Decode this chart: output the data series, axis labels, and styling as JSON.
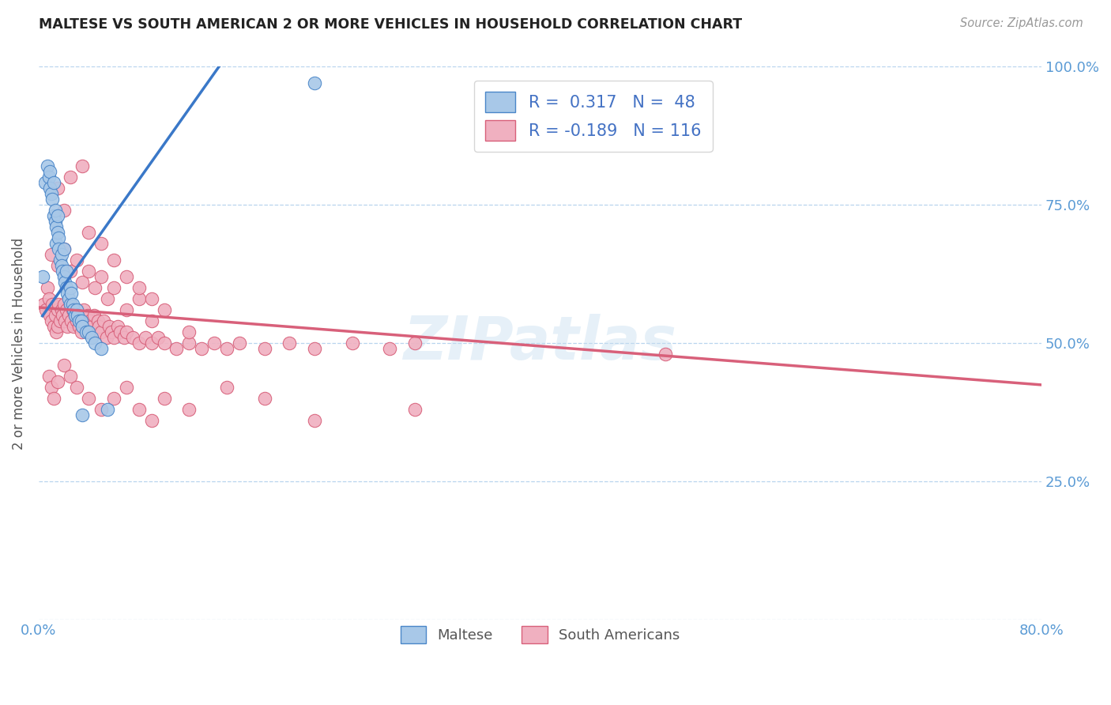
{
  "title": "MALTESE VS SOUTH AMERICAN 2 OR MORE VEHICLES IN HOUSEHOLD CORRELATION CHART",
  "source": "Source: ZipAtlas.com",
  "ylabel": "2 or more Vehicles in Household",
  "xlim": [
    0.0,
    0.8
  ],
  "ylim": [
    0.0,
    1.0
  ],
  "xtick_positions": [
    0.0,
    0.1,
    0.2,
    0.3,
    0.4,
    0.5,
    0.6,
    0.7,
    0.8
  ],
  "xticklabels": [
    "0.0%",
    "",
    "",
    "",
    "",
    "",
    "",
    "",
    "80.0%"
  ],
  "ytick_positions": [
    0.0,
    0.25,
    0.5,
    0.75,
    1.0
  ],
  "ytick_labels": [
    "",
    "25.0%",
    "50.0%",
    "75.0%",
    "100.0%"
  ],
  "watermark": "ZIPatlas",
  "blue_face": "#a8c8e8",
  "blue_edge": "#4a86c8",
  "pink_face": "#f0b0c0",
  "pink_edge": "#d8607a",
  "blue_line": "#3a78c8",
  "pink_line": "#d8607a",
  "blue_slope": 3.2,
  "blue_intercept": 0.54,
  "pink_slope": -0.175,
  "pink_intercept": 0.565,
  "maltese_x": [
    0.003,
    0.005,
    0.007,
    0.008,
    0.009,
    0.009,
    0.01,
    0.011,
    0.012,
    0.012,
    0.013,
    0.013,
    0.014,
    0.014,
    0.015,
    0.015,
    0.016,
    0.016,
    0.017,
    0.018,
    0.018,
    0.019,
    0.02,
    0.02,
    0.021,
    0.022,
    0.022,
    0.023,
    0.024,
    0.025,
    0.025,
    0.026,
    0.027,
    0.028,
    0.029,
    0.03,
    0.031,
    0.032,
    0.034,
    0.035,
    0.038,
    0.04,
    0.042,
    0.045,
    0.05,
    0.055,
    0.22,
    0.035
  ],
  "maltese_y": [
    0.62,
    0.79,
    0.82,
    0.8,
    0.78,
    0.81,
    0.77,
    0.76,
    0.73,
    0.79,
    0.72,
    0.74,
    0.71,
    0.68,
    0.7,
    0.73,
    0.69,
    0.67,
    0.65,
    0.66,
    0.64,
    0.63,
    0.62,
    0.67,
    0.61,
    0.6,
    0.63,
    0.59,
    0.58,
    0.57,
    0.6,
    0.59,
    0.57,
    0.56,
    0.55,
    0.56,
    0.55,
    0.54,
    0.54,
    0.53,
    0.52,
    0.52,
    0.51,
    0.5,
    0.49,
    0.38,
    0.97,
    0.37
  ],
  "sa_x": [
    0.004,
    0.006,
    0.007,
    0.008,
    0.009,
    0.01,
    0.011,
    0.012,
    0.013,
    0.014,
    0.015,
    0.015,
    0.016,
    0.017,
    0.018,
    0.019,
    0.02,
    0.021,
    0.022,
    0.023,
    0.024,
    0.025,
    0.026,
    0.027,
    0.028,
    0.029,
    0.03,
    0.031,
    0.032,
    0.033,
    0.034,
    0.035,
    0.036,
    0.038,
    0.039,
    0.04,
    0.041,
    0.042,
    0.044,
    0.045,
    0.047,
    0.048,
    0.05,
    0.052,
    0.054,
    0.056,
    0.058,
    0.06,
    0.063,
    0.065,
    0.068,
    0.07,
    0.075,
    0.08,
    0.085,
    0.09,
    0.095,
    0.1,
    0.11,
    0.12,
    0.13,
    0.14,
    0.15,
    0.16,
    0.18,
    0.2,
    0.22,
    0.25,
    0.28,
    0.3,
    0.01,
    0.015,
    0.02,
    0.025,
    0.03,
    0.035,
    0.04,
    0.045,
    0.05,
    0.055,
    0.06,
    0.07,
    0.08,
    0.09,
    0.1,
    0.12,
    0.015,
    0.02,
    0.025,
    0.035,
    0.04,
    0.05,
    0.06,
    0.07,
    0.08,
    0.09,
    0.008,
    0.01,
    0.012,
    0.015,
    0.02,
    0.025,
    0.03,
    0.04,
    0.05,
    0.06,
    0.07,
    0.08,
    0.09,
    0.1,
    0.12,
    0.15,
    0.18,
    0.22,
    0.3,
    0.5
  ],
  "sa_y": [
    0.57,
    0.56,
    0.6,
    0.58,
    0.55,
    0.54,
    0.57,
    0.53,
    0.55,
    0.52,
    0.56,
    0.53,
    0.57,
    0.54,
    0.56,
    0.55,
    0.57,
    0.54,
    0.56,
    0.53,
    0.55,
    0.57,
    0.54,
    0.56,
    0.53,
    0.55,
    0.54,
    0.56,
    0.53,
    0.55,
    0.52,
    0.54,
    0.56,
    0.53,
    0.55,
    0.52,
    0.54,
    0.53,
    0.55,
    0.52,
    0.54,
    0.53,
    0.52,
    0.54,
    0.51,
    0.53,
    0.52,
    0.51,
    0.53,
    0.52,
    0.51,
    0.52,
    0.51,
    0.5,
    0.51,
    0.5,
    0.51,
    0.5,
    0.49,
    0.5,
    0.49,
    0.5,
    0.49,
    0.5,
    0.49,
    0.5,
    0.49,
    0.5,
    0.49,
    0.5,
    0.66,
    0.64,
    0.67,
    0.63,
    0.65,
    0.61,
    0.63,
    0.6,
    0.62,
    0.58,
    0.6,
    0.56,
    0.58,
    0.54,
    0.56,
    0.52,
    0.78,
    0.74,
    0.8,
    0.82,
    0.7,
    0.68,
    0.65,
    0.62,
    0.6,
    0.58,
    0.44,
    0.42,
    0.4,
    0.43,
    0.46,
    0.44,
    0.42,
    0.4,
    0.38,
    0.4,
    0.42,
    0.38,
    0.36,
    0.4,
    0.38,
    0.42,
    0.4,
    0.36,
    0.38,
    0.48
  ]
}
